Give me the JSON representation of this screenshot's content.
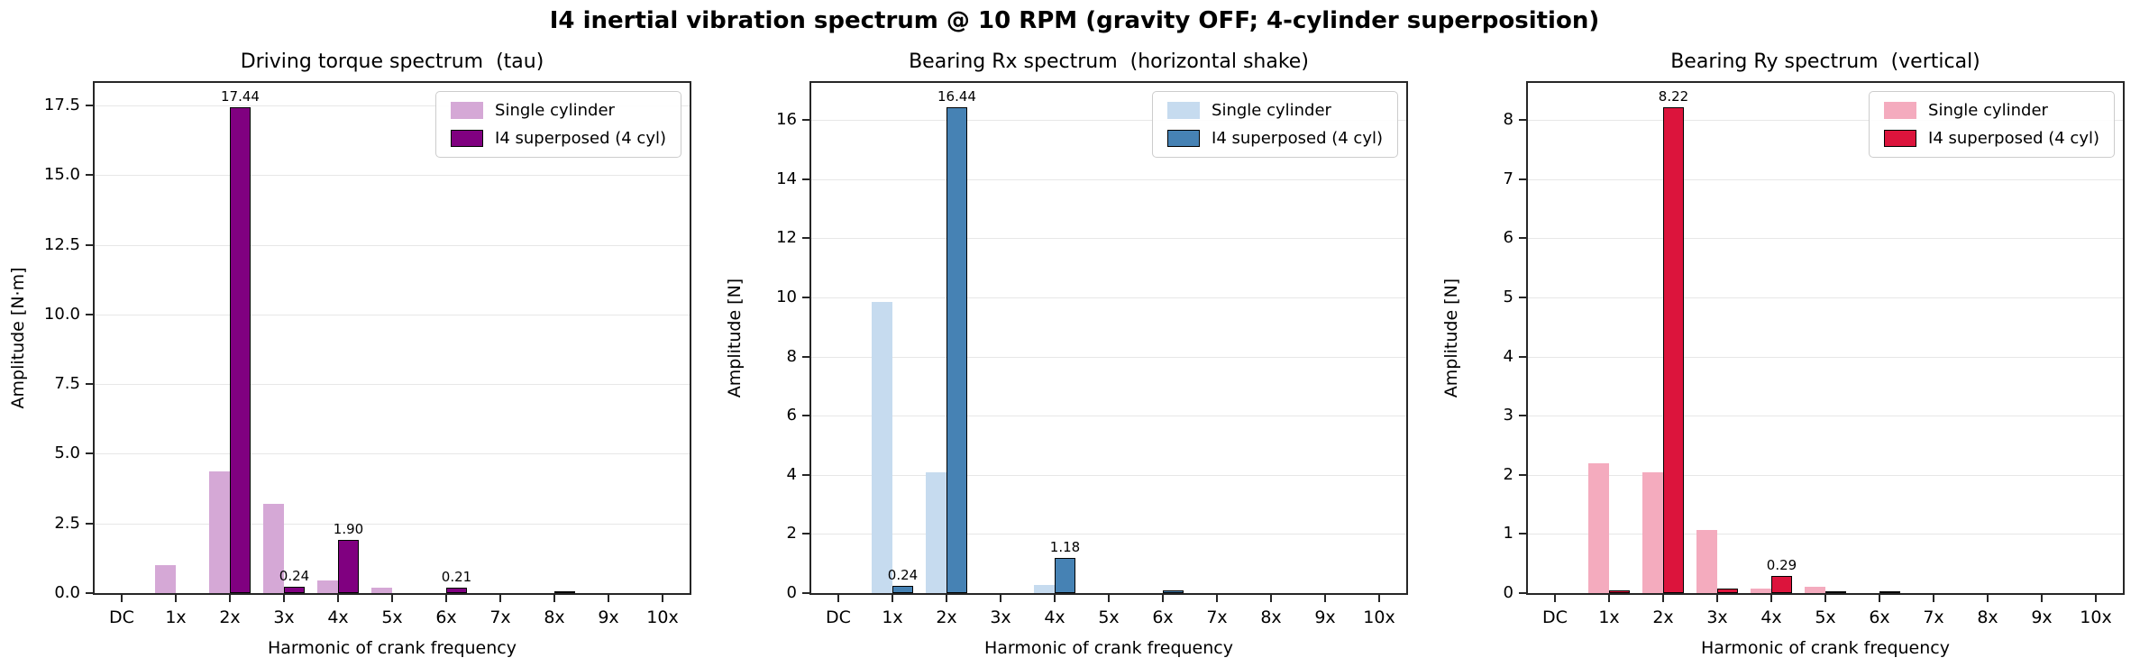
{
  "figure": {
    "title": "I4 inertial vibration spectrum @ 10 RPM (gravity OFF; 4-cylinder superposition)"
  },
  "chart_data": [
    {
      "type": "bar",
      "title": "Driving torque spectrum  (tau)",
      "xlabel": "Harmonic of crank frequency",
      "ylabel": "Amplitude [N·m]",
      "categories": [
        "DC",
        "1x",
        "2x",
        "3x",
        "4x",
        "5x",
        "6x",
        "7x",
        "8x",
        "9x",
        "10x"
      ],
      "series": [
        {
          "name": "Single cylinder",
          "color": "#D5A8D6",
          "edge": null,
          "values": [
            0,
            1.0,
            4.36,
            3.2,
            0.45,
            0.2,
            0,
            0,
            0,
            0,
            0
          ]
        },
        {
          "name": "I4 superposed (4 cyl)",
          "color": "#800080",
          "edge": "#000000",
          "values": [
            0,
            0,
            17.44,
            0.24,
            1.9,
            0,
            0.21,
            0,
            0.02,
            0,
            0
          ]
        }
      ],
      "ytick_labels": [
        "0.0",
        "2.5",
        "5.0",
        "7.5",
        "10.0",
        "12.5",
        "15.0",
        "17.5"
      ],
      "ytick_values": [
        0,
        2.5,
        5,
        7.5,
        10,
        12.5,
        15,
        17.5
      ],
      "ylim": [
        0,
        18.31
      ],
      "grid": true,
      "legend_position": "top-right",
      "annotations": [
        {
          "cat": "2x",
          "text": "17.44"
        },
        {
          "cat": "3x",
          "text": "0.24"
        },
        {
          "cat": "4x",
          "text": "1.90"
        },
        {
          "cat": "6x",
          "text": "0.21"
        }
      ]
    },
    {
      "type": "bar",
      "title": "Bearing Rx spectrum  (horizontal shake)",
      "xlabel": "Harmonic of crank frequency",
      "ylabel": "Amplitude [N]",
      "categories": [
        "DC",
        "1x",
        "2x",
        "3x",
        "4x",
        "5x",
        "6x",
        "7x",
        "8x",
        "9x",
        "10x"
      ],
      "series": [
        {
          "name": "Single cylinder",
          "color": "#C6DBEF",
          "edge": null,
          "values": [
            0,
            9.85,
            4.1,
            0,
            0.28,
            0,
            0,
            0,
            0,
            0,
            0
          ]
        },
        {
          "name": "I4 superposed (4 cyl)",
          "color": "#4682B4",
          "edge": "#000000",
          "values": [
            0,
            0.24,
            16.44,
            0,
            1.18,
            0,
            0.09,
            0,
            0,
            0,
            0
          ]
        }
      ],
      "ytick_labels": [
        "0",
        "2",
        "4",
        "6",
        "8",
        "10",
        "12",
        "14",
        "16"
      ],
      "ytick_values": [
        0,
        2,
        4,
        6,
        8,
        10,
        12,
        14,
        16
      ],
      "ylim": [
        0,
        17.26
      ],
      "grid": true,
      "legend_position": "top-right",
      "annotations": [
        {
          "cat": "1x",
          "text": "0.24"
        },
        {
          "cat": "2x",
          "text": "16.44"
        },
        {
          "cat": "4x",
          "text": "1.18"
        }
      ]
    },
    {
      "type": "bar",
      "title": "Bearing Ry spectrum  (vertical)",
      "xlabel": "Harmonic of crank frequency",
      "ylabel": "Amplitude [N]",
      "categories": [
        "DC",
        "1x",
        "2x",
        "3x",
        "4x",
        "5x",
        "6x",
        "7x",
        "8x",
        "9x",
        "10x"
      ],
      "series": [
        {
          "name": "Single cylinder",
          "color": "#F4ABBE",
          "edge": null,
          "values": [
            0,
            2.2,
            2.05,
            1.07,
            0.07,
            0.1,
            0,
            0,
            0,
            0,
            0
          ]
        },
        {
          "name": "I4 superposed (4 cyl)",
          "color": "#DC143C",
          "edge": "#000000",
          "values": [
            0,
            0.04,
            8.22,
            0.07,
            0.29,
            0.01,
            0.01,
            0,
            0,
            0,
            0
          ]
        }
      ],
      "ytick_labels": [
        "0",
        "1",
        "2",
        "3",
        "4",
        "5",
        "6",
        "7",
        "8"
      ],
      "ytick_values": [
        0,
        1,
        2,
        3,
        4,
        5,
        6,
        7,
        8
      ],
      "ylim": [
        0,
        8.63
      ],
      "grid": true,
      "legend_position": "top-right",
      "annotations": [
        {
          "cat": "2x",
          "text": "8.22"
        },
        {
          "cat": "4x",
          "text": "0.29"
        }
      ]
    }
  ]
}
